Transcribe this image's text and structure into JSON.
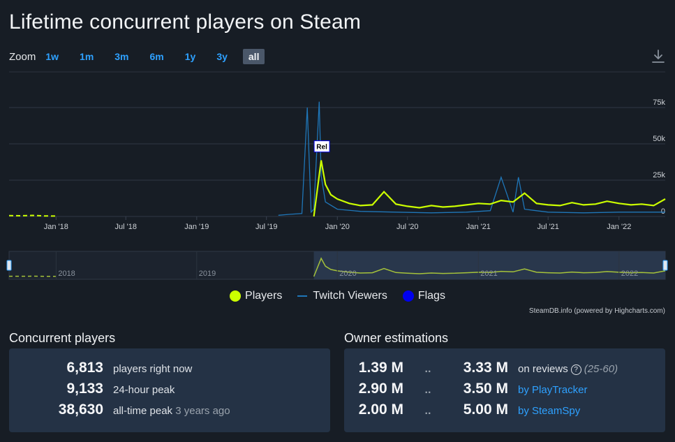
{
  "page_title": "Lifetime concurrent players on Steam",
  "zoom": {
    "label": "Zoom",
    "buttons": [
      "1w",
      "1m",
      "3m",
      "6m",
      "1y",
      "3y",
      "all"
    ],
    "active": "all"
  },
  "colors": {
    "players": "#ccff00",
    "twitch": "#1f76b8",
    "flags": "#0000ee",
    "background": "#171d25",
    "panel": "#243245",
    "link": "#2ea1ff"
  },
  "chart_data": {
    "type": "line",
    "y_ticks": [
      "0",
      "25k",
      "50k",
      "75k"
    ],
    "ylim": [
      0,
      85000
    ],
    "x_ticks": [
      "Jan '18",
      "Jul '18",
      "Jan '19",
      "Jul '19",
      "Jan '20",
      "Jul '20",
      "Jan '21",
      "Jul '21",
      "Jan '22"
    ],
    "navigator_ticks": [
      "2018",
      "2019",
      "2020",
      "2021",
      "2022"
    ],
    "x_range": [
      "2017-09",
      "2022-05"
    ],
    "flag_label": "Rel",
    "series": [
      {
        "name": "Players",
        "x": [
          "2017-09",
          "2017-10",
          "2017-11",
          "2017-12",
          "2018-01",
          "2019-11",
          "2019-11-20",
          "2019-12-01",
          "2019-12-15",
          "2020-01",
          "2020-02",
          "2020-03",
          "2020-04",
          "2020-05",
          "2020-06",
          "2020-07",
          "2020-08",
          "2020-09",
          "2020-10",
          "2020-11",
          "2020-12",
          "2021-01",
          "2021-02",
          "2021-03",
          "2021-04",
          "2021-05",
          "2021-06",
          "2021-07",
          "2021-08",
          "2021-09",
          "2021-10",
          "2021-11",
          "2021-12",
          "2022-01",
          "2022-02",
          "2022-03",
          "2022-04",
          "2022-05"
        ],
        "values": [
          600,
          500,
          700,
          400,
          300,
          0,
          38630,
          22000,
          15000,
          12000,
          9000,
          7500,
          8000,
          17000,
          8500,
          7000,
          6000,
          7500,
          6500,
          7000,
          8000,
          9000,
          8500,
          11000,
          10000,
          16000,
          9000,
          8000,
          7500,
          9500,
          8000,
          8500,
          10500,
          9000,
          8000,
          8500,
          7500,
          12000
        ]
      },
      {
        "name": "Twitch Viewers",
        "x": [
          "2019-08",
          "2019-09",
          "2019-10",
          "2019-10-15",
          "2019-10-25",
          "2019-11",
          "2019-11-15",
          "2019-11-20",
          "2019-12",
          "2020-01",
          "2020-03",
          "2020-06",
          "2020-09",
          "2020-12",
          "2021-02",
          "2021-03",
          "2021-04",
          "2021-04-15",
          "2021-05",
          "2021-07",
          "2021-10",
          "2022-01",
          "2022-05"
        ],
        "values": [
          800,
          1500,
          2000,
          75000,
          3000,
          5000,
          79000,
          28000,
          10000,
          5000,
          3500,
          3000,
          2500,
          3000,
          4000,
          27000,
          3000,
          27000,
          5000,
          3000,
          2500,
          3000,
          3000
        ]
      }
    ]
  },
  "credit": "SteamDB.info (powered by Highcharts.com)",
  "concurrent": {
    "heading": "Concurrent players",
    "rows": [
      {
        "value": "6,813",
        "label": "players right now",
        "note": ""
      },
      {
        "value": "9,133",
        "label": "24-hour peak",
        "note": ""
      },
      {
        "value": "38,630",
        "label": "all-time peak",
        "note": "3 years ago"
      }
    ]
  },
  "owners": {
    "heading": "Owner estimations",
    "rows": [
      {
        "low": "1.39 M",
        "sep": "..",
        "high": "3.33 M",
        "label": "on reviews",
        "extra": "(25-60)"
      },
      {
        "low": "2.90 M",
        "sep": "..",
        "high": "3.50 M",
        "label": "by PlayTracker",
        "extra": ""
      },
      {
        "low": "2.00 M",
        "sep": "..",
        "high": "5.00 M",
        "label": "by SteamSpy",
        "extra": ""
      }
    ]
  }
}
